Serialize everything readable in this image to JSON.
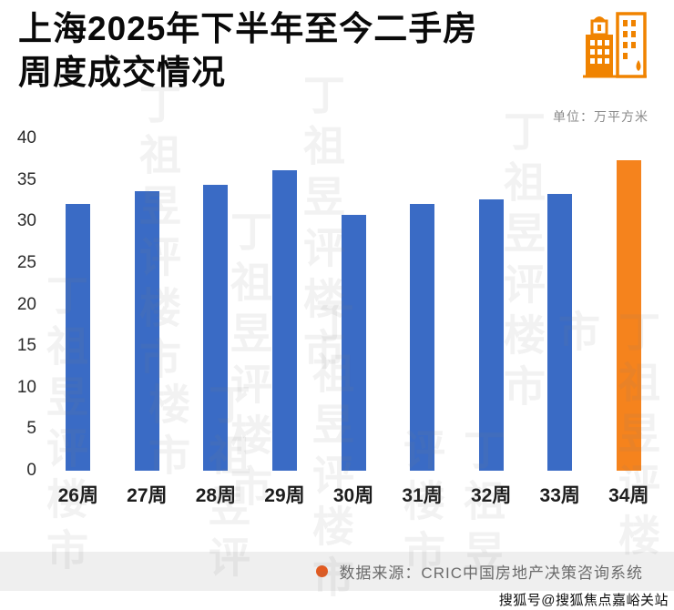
{
  "header": {
    "title_line1": "上海2025年下半年至今二手房",
    "title_line2": "周度成交情况",
    "unit_label": "单位：万平方米"
  },
  "chart_data": {
    "type": "bar",
    "title": "上海2025年下半年至今二手房周度成交情况",
    "ylabel": "万平方米",
    "categories": [
      "26周",
      "27周",
      "28周",
      "29周",
      "30周",
      "31周",
      "32周",
      "33周",
      "34周"
    ],
    "values": [
      32.1,
      33.6,
      34.4,
      36.2,
      30.8,
      32.1,
      32.7,
      33.3,
      37.4
    ],
    "bar_colors": [
      "#3a6bc5",
      "#3a6bc5",
      "#3a6bc5",
      "#3a6bc5",
      "#3a6bc5",
      "#3a6bc5",
      "#3a6bc5",
      "#3a6bc5",
      "#f5831d"
    ],
    "ylim": [
      0,
      40
    ],
    "yticks": [
      40,
      35,
      30,
      25,
      20,
      15,
      10,
      5,
      0
    ],
    "grid": false,
    "legend_position": "none"
  },
  "footer": {
    "bullet_color": "#e35a1f",
    "source_text": "数据来源：CRIC中国房地产决策咨询系统"
  },
  "watermark": {
    "text": "丁祖昱评楼市",
    "sohu_text": "搜狐号@搜狐焦点嘉峪关站"
  },
  "colors": {
    "bar_blue": "#3a6bc5",
    "bar_orange": "#f5831d",
    "icon_orange": "#f08300",
    "footer_bg": "#efefef"
  }
}
